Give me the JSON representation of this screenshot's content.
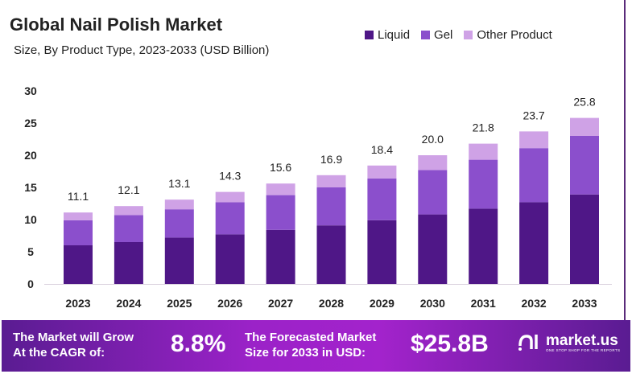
{
  "colors": {
    "liquid": "#4f1787",
    "gel": "#8b4fcc",
    "other": "#cfa2e6"
  },
  "chart_data": {
    "type": "bar",
    "stacked": true,
    "title": "Global Nail Polish Market",
    "subtitle": "Size, By Product Type, 2023-2033 (USD Billion)",
    "xlabel": "",
    "ylabel": "",
    "ylim": [
      0,
      30
    ],
    "yticks": [
      0,
      5,
      10,
      15,
      20,
      25,
      30
    ],
    "legend_position": "top-right",
    "categories": [
      "2023",
      "2024",
      "2025",
      "2026",
      "2027",
      "2028",
      "2029",
      "2030",
      "2031",
      "2032",
      "2033"
    ],
    "series": [
      {
        "name": "Liquid",
        "values": [
          6.0,
          6.5,
          7.2,
          7.7,
          8.4,
          9.1,
          9.9,
          10.8,
          11.7,
          12.7,
          13.9
        ]
      },
      {
        "name": "Gel",
        "values": [
          3.9,
          4.2,
          4.4,
          5.0,
          5.4,
          5.9,
          6.5,
          6.9,
          7.6,
          8.4,
          9.1
        ]
      },
      {
        "name": "Other Product",
        "values": [
          1.2,
          1.4,
          1.5,
          1.6,
          1.8,
          1.9,
          2.0,
          2.3,
          2.5,
          2.6,
          2.8
        ]
      }
    ],
    "totals": [
      "11.1",
      "12.1",
      "13.1",
      "14.3",
      "15.6",
      "16.9",
      "18.4",
      "20.0",
      "21.8",
      "23.7",
      "25.8"
    ]
  },
  "banner": {
    "cagr_label_1": "The Market will Grow",
    "cagr_label_2": "At the CAGR of:",
    "cagr_value": "8.8%",
    "forecast_label_1": "The Forecasted Market",
    "forecast_label_2": "Size for 2033 in USD:",
    "forecast_value": "$25.8B",
    "logo_name": "market.us",
    "logo_tagline": "ONE STOP SHOP FOR THE REPORTS"
  }
}
